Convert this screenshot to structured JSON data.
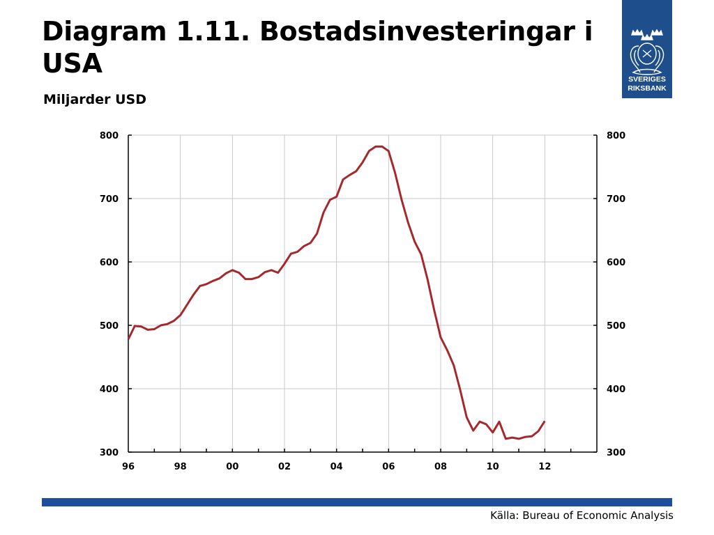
{
  "header": {
    "title": "Diagram 1.11. Bostadsinvesteringar i USA",
    "subtitle": "Miljarder USD"
  },
  "logo": {
    "line1": "SVERIGES",
    "line2": "RIKSBANK",
    "color": "#1f4e8c"
  },
  "footer": {
    "source": "Källa: Bureau of Economic Analysis",
    "bar_color": "#1f4e9c"
  },
  "chart_data": {
    "type": "line",
    "title": "",
    "xlabel": "",
    "ylabel": "",
    "ylim": [
      300,
      800
    ],
    "xlim": [
      1996,
      2014
    ],
    "x_ticks": [
      1996,
      1998,
      2000,
      2002,
      2004,
      2006,
      2008,
      2010,
      2012
    ],
    "x_tick_labels": [
      "96",
      "98",
      "00",
      "02",
      "04",
      "06",
      "08",
      "10",
      "12"
    ],
    "y_ticks": [
      300,
      400,
      500,
      600,
      700,
      800
    ],
    "y_tick_labels": [
      "300",
      "400",
      "500",
      "600",
      "700",
      "800"
    ],
    "grid": true,
    "line_color": "#a5282d",
    "series": [
      {
        "x": [
          1996.0,
          1996.25,
          1996.5,
          1996.75,
          1997.0,
          1997.25,
          1997.5,
          1997.75,
          1998.0,
          1998.25,
          1998.5,
          1998.75,
          1999.0,
          1999.25,
          1999.5,
          1999.75,
          2000.0,
          2000.25,
          2000.5,
          2000.75,
          2001.0,
          2001.25,
          2001.5,
          2001.75,
          2002.0,
          2002.25,
          2002.5,
          2002.75,
          2003.0,
          2003.25,
          2003.5,
          2003.75,
          2004.0,
          2004.25,
          2004.5,
          2004.75,
          2005.0,
          2005.25,
          2005.5,
          2005.75,
          2006.0,
          2006.25,
          2006.5,
          2006.75,
          2007.0,
          2007.25,
          2007.5,
          2007.75,
          2008.0,
          2008.25,
          2008.5,
          2008.75,
          2009.0,
          2009.25,
          2009.5,
          2009.75,
          2010.0,
          2010.25,
          2010.5,
          2010.75,
          2011.0,
          2011.25,
          2011.5,
          2011.75,
          2012.0
        ],
        "values": [
          478,
          499,
          498,
          493,
          494,
          500,
          502,
          507,
          516,
          532,
          548,
          562,
          565,
          570,
          574,
          582,
          587,
          583,
          573,
          573,
          576,
          584,
          587,
          583,
          597,
          613,
          616,
          625,
          630,
          645,
          678,
          698,
          703,
          730,
          737,
          743,
          757,
          775,
          782,
          782,
          775,
          740,
          698,
          662,
          632,
          612,
          572,
          524,
          481,
          461,
          437,
          398,
          355,
          334,
          348,
          344,
          331,
          348,
          321,
          323,
          321,
          324,
          325,
          333,
          349
        ]
      }
    ]
  }
}
